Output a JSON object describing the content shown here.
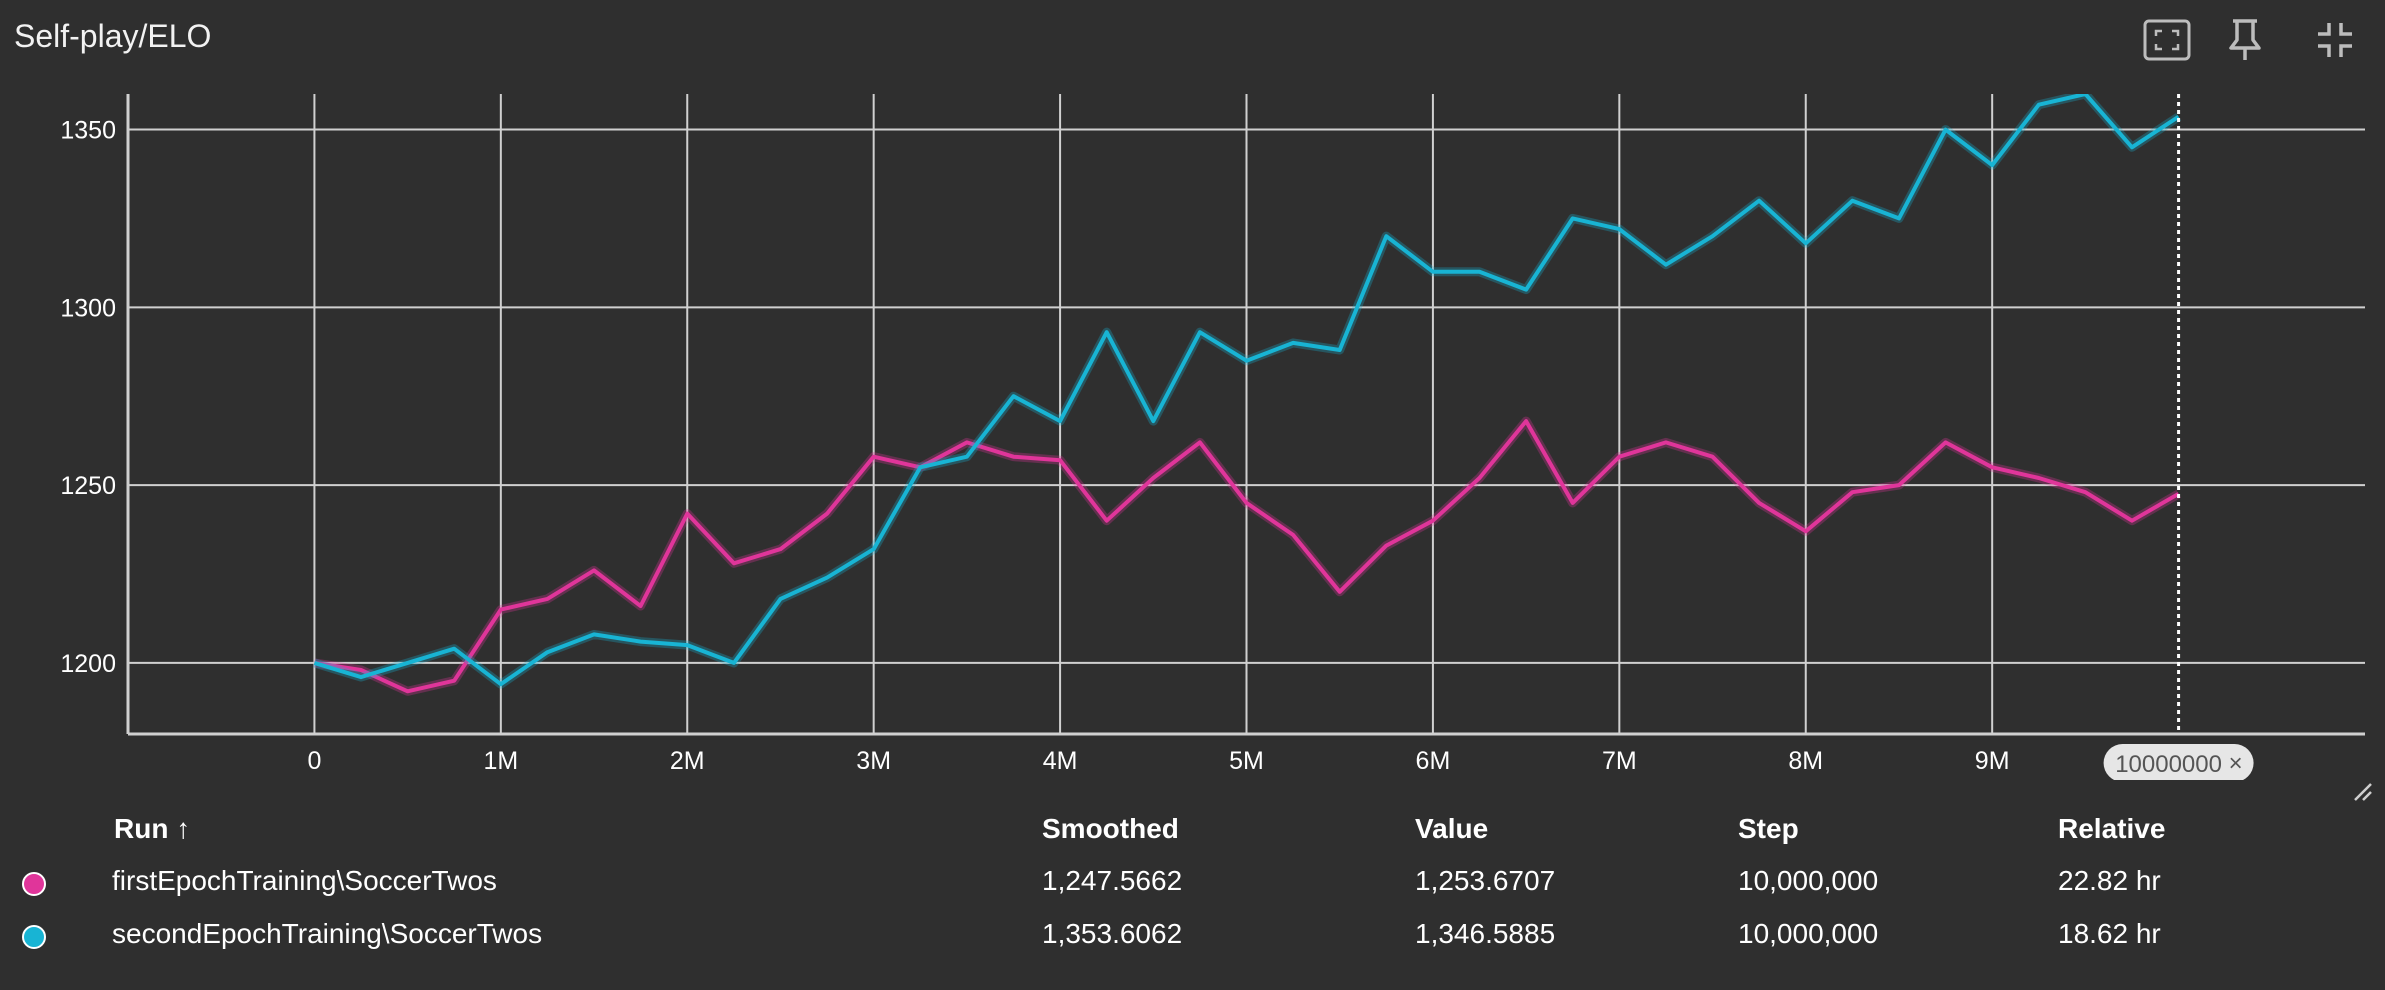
{
  "card": {
    "title": "Self-play/ELO"
  },
  "toolbar": {
    "fullscreen": "fullscreen-icon",
    "pin": "pin-icon",
    "collapse": "collapse-icon",
    "more": "more-vert-icon"
  },
  "chart_data": {
    "type": "line",
    "title": "Self-play/ELO",
    "xlabel": "",
    "ylabel": "",
    "xlim": [
      -1000000,
      11000000
    ],
    "ylim": [
      1180,
      1360
    ],
    "x_ticks": [
      "0",
      "1M",
      "2M",
      "3M",
      "4M",
      "5M",
      "6M",
      "7M",
      "8M",
      "9M"
    ],
    "y_ticks": [
      "1200",
      "1250",
      "1300",
      "1350"
    ],
    "grid": true,
    "hover_step_label": "10000000",
    "x": [
      0,
      250000,
      500000,
      750000,
      1000000,
      1250000,
      1500000,
      1750000,
      2000000,
      2250000,
      2500000,
      2750000,
      3000000,
      3250000,
      3500000,
      3750000,
      4000000,
      4250000,
      4500000,
      4750000,
      5000000,
      5250000,
      5500000,
      5750000,
      6000000,
      6250000,
      6500000,
      6750000,
      7000000,
      7250000,
      7500000,
      7750000,
      8000000,
      8250000,
      8500000,
      8750000,
      9000000,
      9250000,
      9500000,
      9750000,
      10000000
    ],
    "series": [
      {
        "name": "firstEpochTraining\\SoccerTwos",
        "color": "#e0359a",
        "values": [
          1200,
          1198,
          1192,
          1195,
          1215,
          1218,
          1226,
          1216,
          1242,
          1228,
          1232,
          1242,
          1258,
          1255,
          1262,
          1258,
          1257,
          1240,
          1252,
          1262,
          1245,
          1236,
          1220,
          1233,
          1240,
          1252,
          1268,
          1245,
          1258,
          1262,
          1258,
          1245,
          1237,
          1248,
          1250,
          1262,
          1255,
          1252,
          1248,
          1240,
          1247.5662
        ]
      },
      {
        "name": "secondEpochTraining\\SoccerTwos",
        "color": "#18b4d4",
        "values": [
          1200,
          1196,
          1200,
          1204,
          1194,
          1203,
          1208,
          1206,
          1205,
          1200,
          1218,
          1224,
          1232,
          1255,
          1258,
          1275,
          1268,
          1293,
          1268,
          1293,
          1285,
          1290,
          1288,
          1320,
          1310,
          1310,
          1305,
          1325,
          1322,
          1312,
          1320,
          1330,
          1318,
          1330,
          1325,
          1350,
          1340,
          1357,
          1360,
          1345,
          1353.6062
        ]
      }
    ]
  },
  "table": {
    "headers": {
      "run": "Run ↑",
      "smoothed": "Smoothed",
      "value": "Value",
      "step": "Step",
      "relative": "Relative"
    },
    "rows": [
      {
        "color": "#e0359a",
        "run": "firstEpochTraining\\SoccerTwos",
        "smoothed": "1,247.5662",
        "value": "1,253.6707",
        "step": "10,000,000",
        "relative": "22.82 hr"
      },
      {
        "color": "#18b4d4",
        "run": "secondEpochTraining\\SoccerTwos",
        "smoothed": "1,353.6062",
        "value": "1,346.5885",
        "step": "10,000,000",
        "relative": "18.62 hr"
      }
    ]
  }
}
